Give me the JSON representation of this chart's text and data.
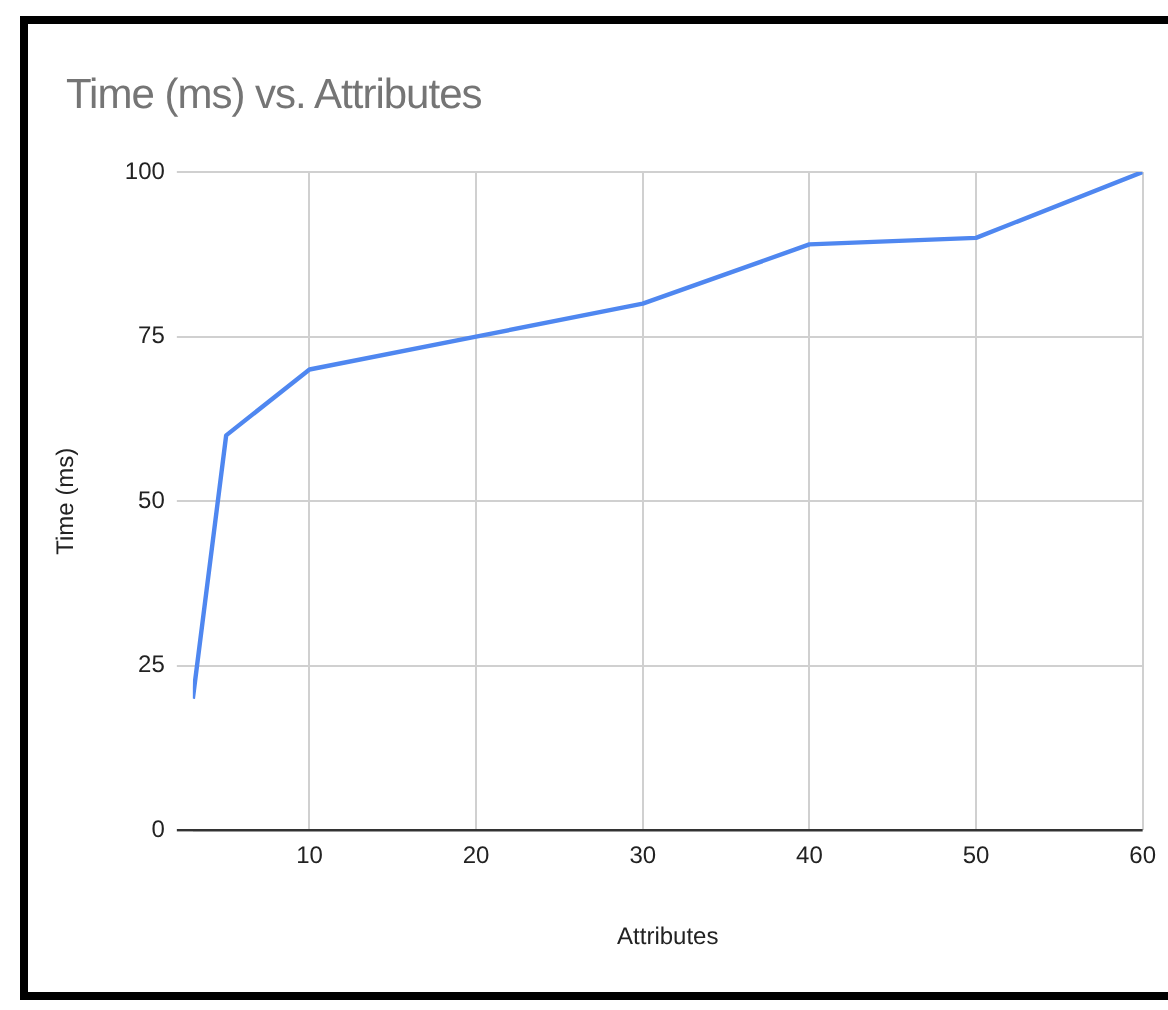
{
  "chart_data": {
    "type": "line",
    "title": "Time (ms) vs. Attributes",
    "xlabel": "Attributes",
    "ylabel": "Time (ms)",
    "x": [
      3,
      5,
      10,
      20,
      30,
      40,
      50,
      60
    ],
    "series": [
      {
        "color": "#4f87f0",
        "values": [
          20,
          60,
          70,
          75,
          80,
          89,
          90,
          100
        ]
      }
    ],
    "xlim": [
      3,
      60
    ],
    "xticks": [
      10,
      20,
      30,
      40,
      50,
      60
    ],
    "ylim": [
      0,
      100
    ],
    "yticks": [
      0,
      25,
      50,
      75,
      100
    ],
    "grid": true,
    "legend": false,
    "marker": "none",
    "line_style": "solid"
  }
}
